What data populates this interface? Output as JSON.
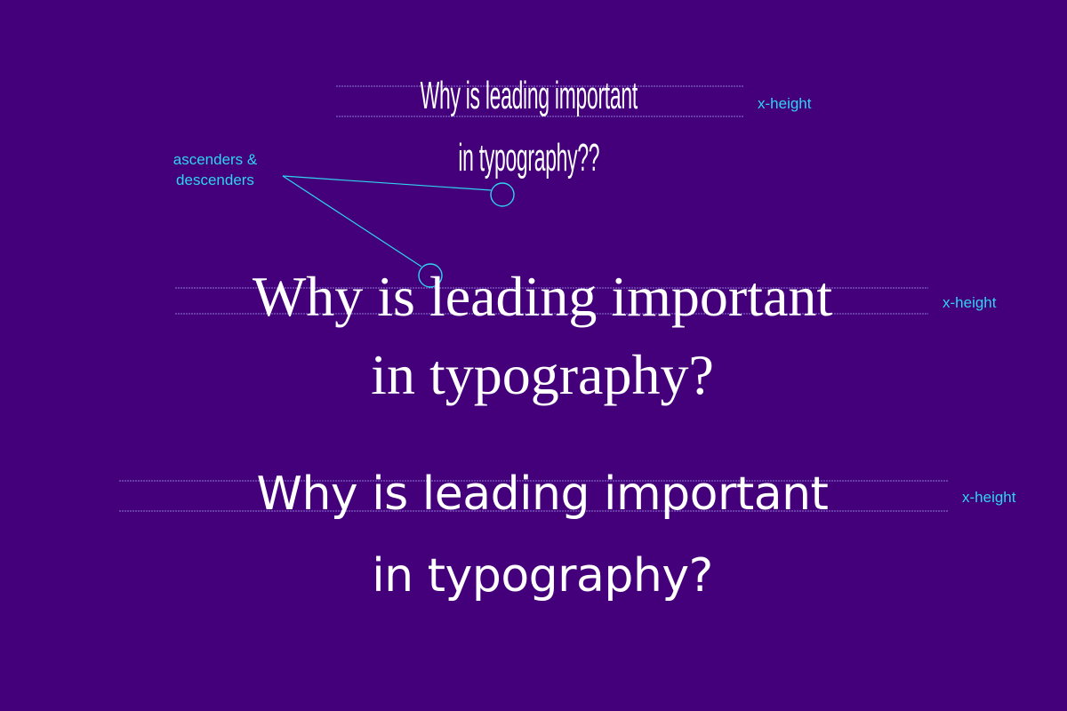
{
  "samples": [
    {
      "style": "condensed-sans",
      "lines": [
        "Why is leading important",
        "in typography??"
      ],
      "xheight_label": "x-height"
    },
    {
      "style": "serif",
      "lines": [
        "Why is leading important",
        "in typography?"
      ],
      "xheight_label": "x-height"
    },
    {
      "style": "sans",
      "lines": [
        "Why is leading important",
        "in typography?"
      ],
      "xheight_label": "x-height"
    }
  ],
  "callout": {
    "lines": [
      "ascenders &",
      "descenders"
    ]
  },
  "colors": {
    "background": "#44007a",
    "text": "#ffffff",
    "accent": "#2fd3f0",
    "guide_line": "#8f7bd6"
  }
}
